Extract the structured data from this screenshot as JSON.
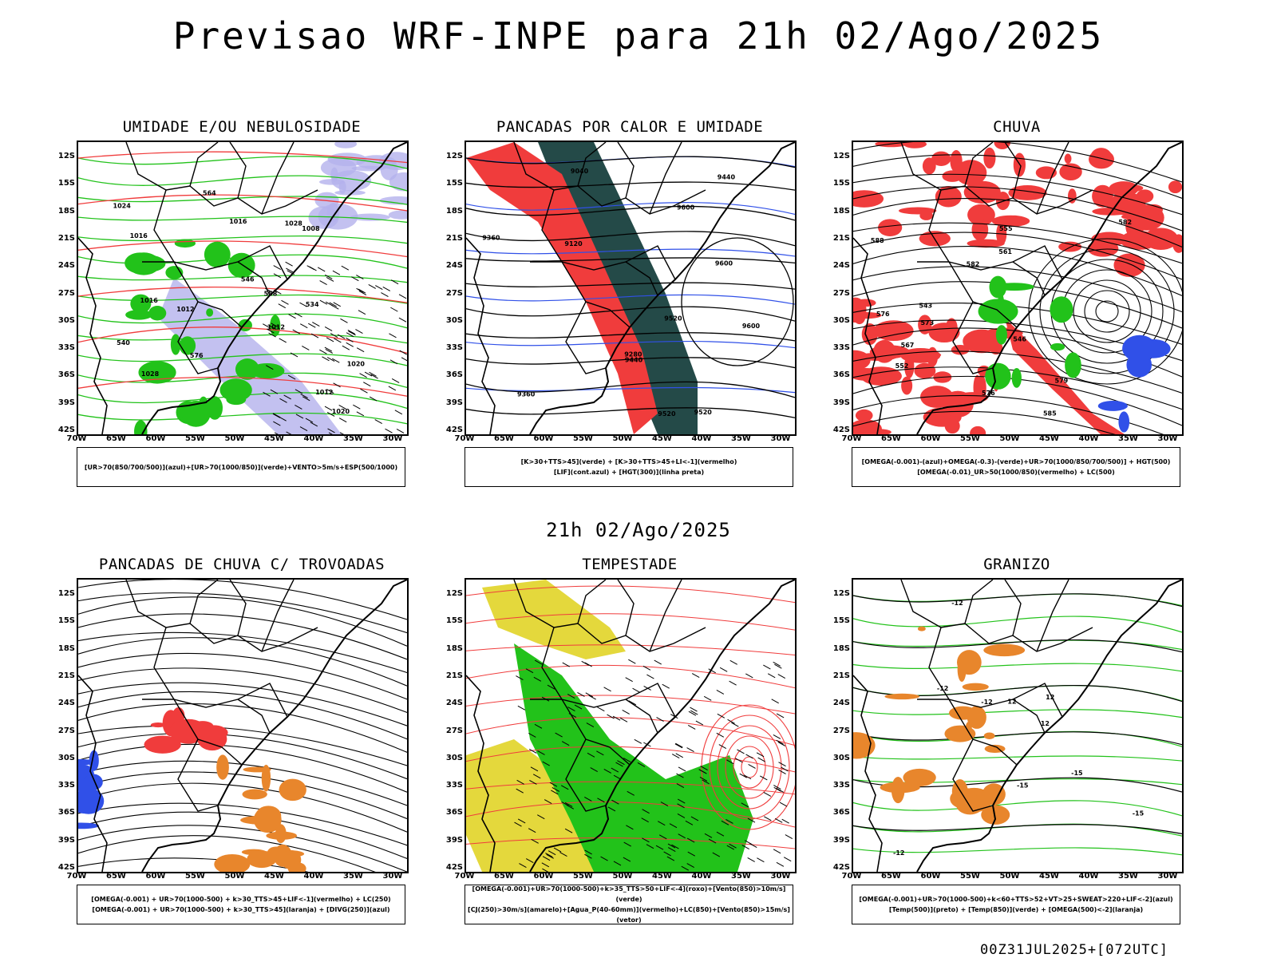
{
  "title": "Previsao WRF-INPE  para 21h 02/Ago/2025",
  "mid_time": "21h 02/Ago/2025",
  "footer": "00Z31JUL2025+[072UTC]",
  "lat_labels": [
    "12S",
    "15S",
    "18S",
    "21S",
    "24S",
    "27S",
    "30S",
    "33S",
    "36S",
    "39S",
    "42S"
  ],
  "lon_labels": [
    "70W",
    "65W",
    "60W",
    "55W",
    "50W",
    "45W",
    "40W",
    "35W",
    "30W"
  ],
  "panels": [
    {
      "id": "umidade",
      "title": "UMIDADE E/OU NEBULOSIDADE",
      "legend": [
        "[UR>70(850/700/500)](azul)+[UR>70(1000/850)](verde)+VENTO>5m/s+ESP(500/1000)"
      ]
    },
    {
      "id": "pancadas-calor",
      "title": "PANCADAS POR CALOR E UMIDADE",
      "legend": [
        "[K>30+TTS>45](verde) + [K>30+TTS>45+LI<-1](vermelho)",
        "[LIF](cont.azul) + [HGT(300)](linha preta)"
      ]
    },
    {
      "id": "chuva",
      "title": "CHUVA",
      "legend": [
        "[OMEGA(-0.001)-(azul)+OMEGA(-0.3)-(verde)+UR>70(1000/850/700/500)] + HGT(500)",
        "[OMEGA(-0.01)_UR>50(1000/850)(vermelho) + LC(500)"
      ]
    },
    {
      "id": "trovoadas",
      "title": "PANCADAS DE CHUVA C/ TROVOADAS",
      "legend": [
        "[OMEGA(-0.001) + UR>70(1000-500) + k>30_TTS>45+LIF<-1](vermelho) + LC(250)",
        "[OMEGA(-0.001) + UR>70(1000-500) + k>30_TTS>45](laranja) + [DIVG(250)](azul)"
      ]
    },
    {
      "id": "tempestade",
      "title": "TEMPESTADE",
      "legend": [
        "[OMEGA(-0.001)+UR>70(1000-500)+k>35_TTS>50+LIF<-4](roxo)+[Vento(850)>10m/s](verde)",
        "[CJ(250)>30m/s](amarelo)+[Agua_P(40-60mm)](vermelho)+LC(850)+[Vento(850)>15m/s](vetor)"
      ]
    },
    {
      "id": "granizo",
      "title": "GRANIZO",
      "legend": [
        "[OMEGA(-0.001)+UR>70(1000-500)+k<60+TTS>52+VT>25+SWEAT>220+LIF<-2](azul)",
        "[Temp(500)](preto) + [Temp(850)](verde) + [OMEGA(500)<-2](laranja)"
      ]
    }
  ],
  "contour_labels": {
    "umidade": [
      "1020",
      "1016",
      "1012",
      "1024",
      "1020",
      "1016",
      "1028",
      "1012",
      "1008",
      "1016",
      "1028",
      "1012",
      "576",
      "564",
      "558",
      "540",
      "534",
      "546"
    ],
    "pancadas-calor": [
      "9600",
      "9520",
      "9440",
      "9360",
      "9280",
      "9120",
      "9040",
      "9600",
      "9520",
      "9600",
      "9520",
      "9440",
      "9360"
    ],
    "chuva": [
      "588",
      "582",
      "576",
      "573",
      "567",
      "561",
      "555",
      "552",
      "546",
      "543",
      "585",
      "582",
      "579",
      "576"
    ],
    "granizo": [
      "-12",
      "-15",
      "-12",
      "-12",
      "-15",
      "12",
      "12",
      "12",
      "-12",
      "-15"
    ]
  },
  "colors": {
    "green": "#22c21a",
    "red": "#f03c3c",
    "blue": "#3050e8",
    "lavender": "#b4b2ec",
    "yellow": "#e4d83c",
    "orange": "#e8862c",
    "darkteal": "#244a48",
    "black": "#000000"
  }
}
